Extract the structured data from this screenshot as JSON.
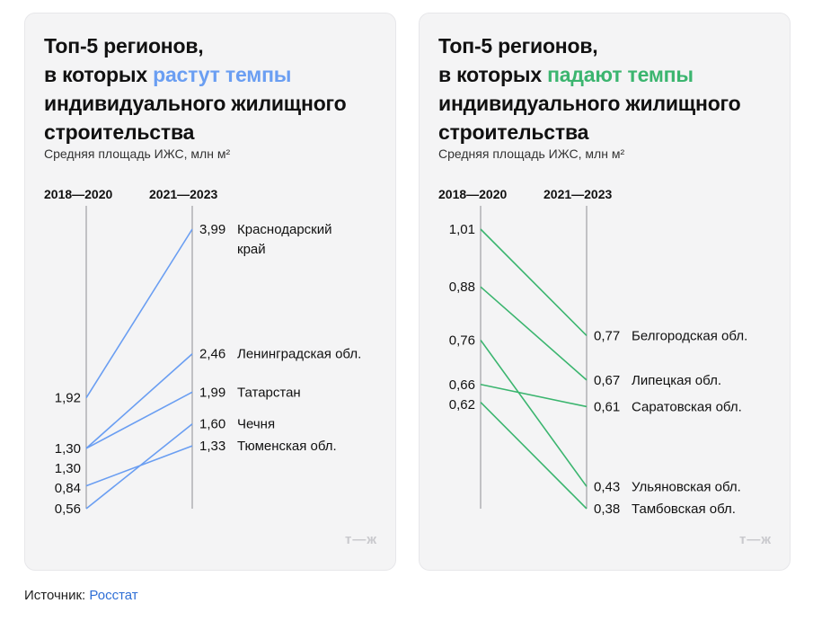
{
  "accent_colors": {
    "left": "#6a9ef2",
    "right": "#3bb56f"
  },
  "logo_text": "т—ж",
  "source": {
    "label": "Источник:",
    "link_text": "Росстат"
  },
  "chart_data": [
    {
      "type": "line",
      "title": {
        "line1": "Топ-5 регионов,",
        "line2_prefix": "в которых ",
        "highlight": "растут темпы",
        "line3": "индивидуального жилищного",
        "line4": "строительства"
      },
      "subtitle": "Средняя площадь ИЖС, млн м²",
      "x": [
        "2018—2020",
        "2021—2023"
      ],
      "ylim": [
        0.56,
        3.99
      ],
      "series": [
        {
          "name": "Краснодарский край",
          "name_lines": [
            "Краснодарский",
            "край"
          ],
          "values": [
            1.92,
            3.99
          ],
          "labels": [
            "1,92",
            "3,99"
          ]
        },
        {
          "name": "Ленинградская обл.",
          "values": [
            1.3,
            2.46
          ],
          "labels": [
            "1,30",
            "2,46"
          ]
        },
        {
          "name": "Татарстан",
          "values": [
            1.3,
            1.99
          ],
          "labels": [
            "1,30",
            "1,99"
          ]
        },
        {
          "name": "Чечня",
          "values": [
            0.56,
            1.6
          ],
          "labels": [
            "0,56",
            "1,60"
          ]
        },
        {
          "name": "Тюменская обл.",
          "values": [
            0.84,
            1.33
          ],
          "labels": [
            "0,84",
            "1,33"
          ]
        }
      ]
    },
    {
      "type": "line",
      "title": {
        "line1": "Топ-5 регионов,",
        "line2_prefix": "в которых ",
        "highlight": "падают темпы",
        "line3": "индивидуального жилищного",
        "line4": "строительства"
      },
      "subtitle": "Средняя площадь ИЖС, млн м²",
      "x": [
        "2018—2020",
        "2021—2023"
      ],
      "ylim": [
        0.38,
        1.01
      ],
      "series": [
        {
          "name": "Белгородская обл.",
          "values": [
            1.01,
            0.77
          ],
          "labels": [
            "1,01",
            "0,77"
          ]
        },
        {
          "name": "Липецкая обл.",
          "values": [
            0.88,
            0.67
          ],
          "labels": [
            "0,88",
            "0,67"
          ]
        },
        {
          "name": "Саратовская обл.",
          "values": [
            0.66,
            0.61
          ],
          "labels": [
            "0,66",
            "0,61"
          ]
        },
        {
          "name": "Ульяновская обл.",
          "values": [
            0.76,
            0.43
          ],
          "labels": [
            "0,76",
            "0,43"
          ]
        },
        {
          "name": "Тамбовская обл.",
          "values": [
            0.62,
            0.38
          ],
          "labels": [
            "0,62",
            "0,38"
          ]
        }
      ]
    }
  ]
}
